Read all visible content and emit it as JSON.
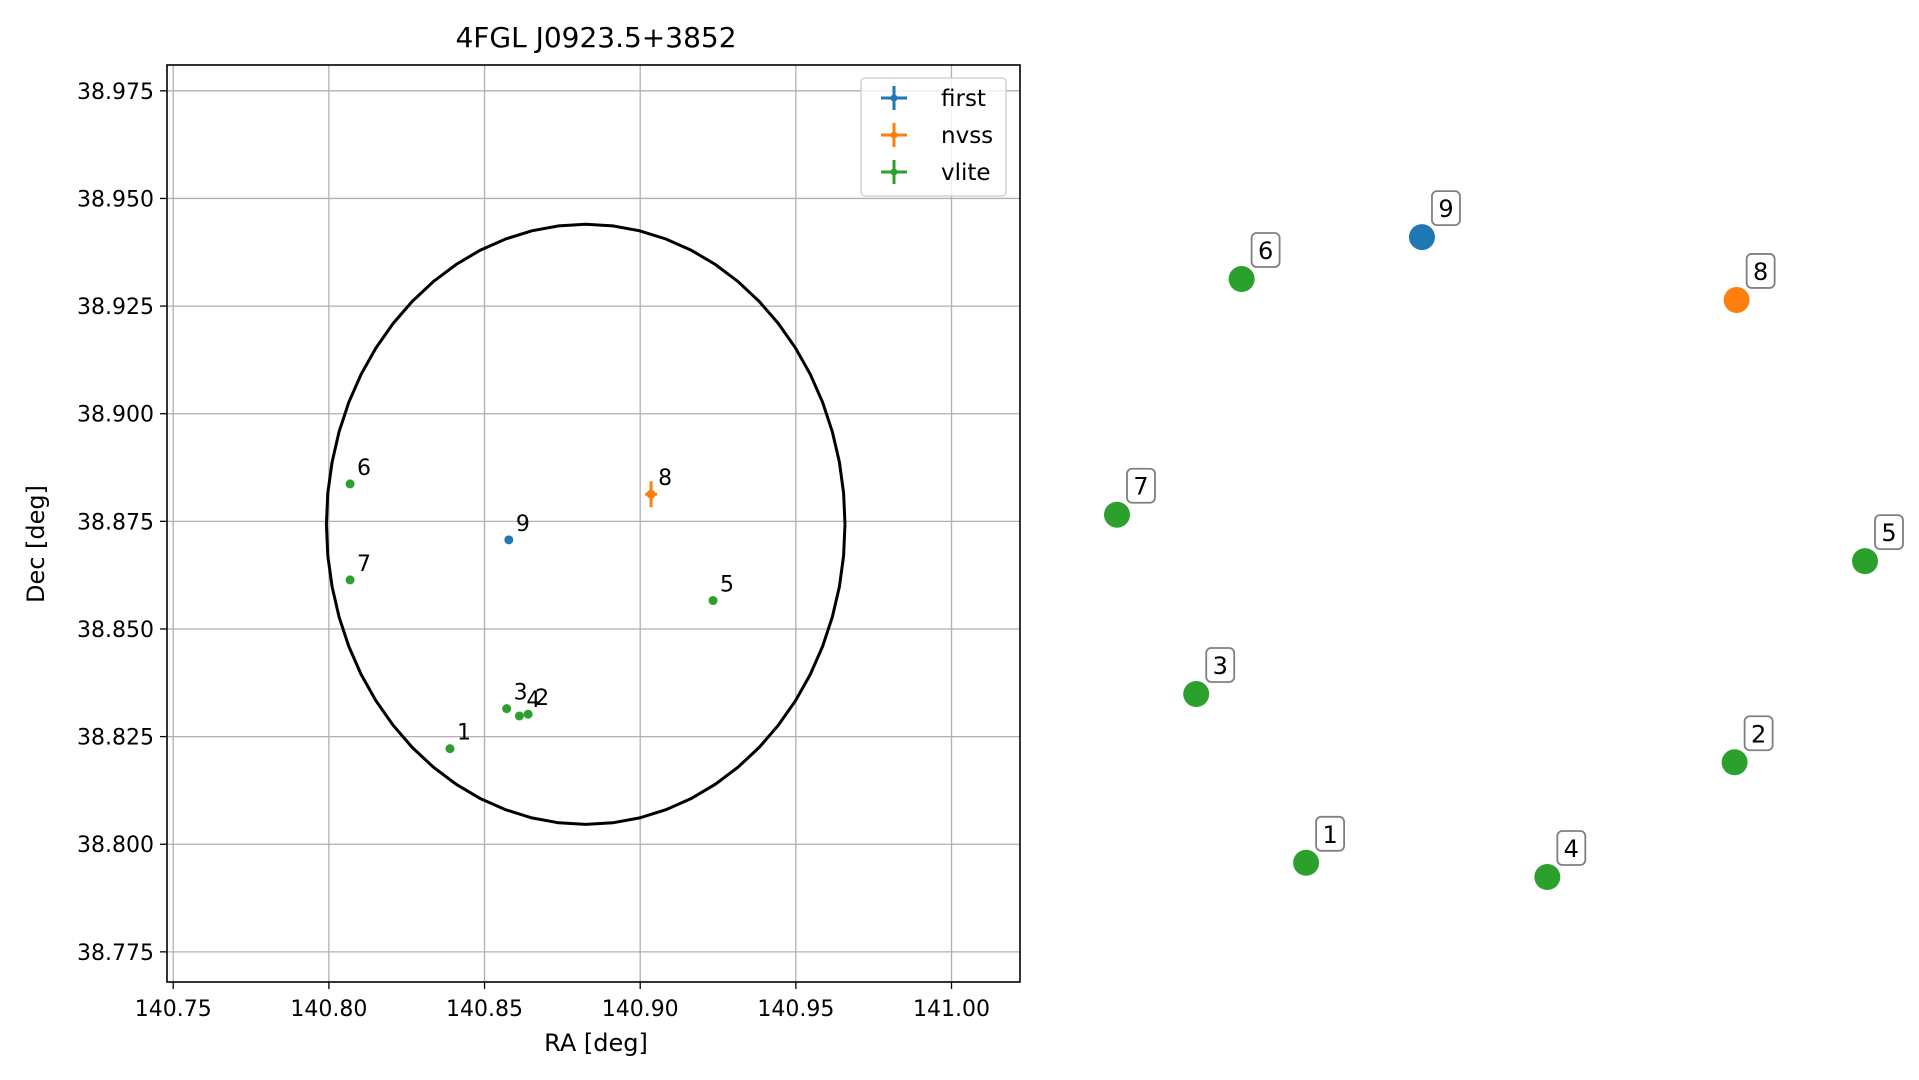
{
  "chart_data": [
    {
      "type": "scatter",
      "title": "4FGL J0923.5+3852",
      "xlabel": "RA [deg]",
      "ylabel": "Dec [deg]",
      "xlim": [
        140.748,
        141.022
      ],
      "ylim": [
        38.768,
        38.981
      ],
      "xticks": [
        140.75,
        140.8,
        140.85,
        140.9,
        140.95,
        141.0
      ],
      "xtick_labels": [
        "140.75",
        "140.80",
        "140.85",
        "140.90",
        "140.95",
        "141.00"
      ],
      "yticks": [
        38.775,
        38.8,
        38.825,
        38.85,
        38.875,
        38.9,
        38.925,
        38.95,
        38.975
      ],
      "ytick_labels": [
        "38.775",
        "38.800",
        "38.825",
        "38.850",
        "38.875",
        "38.900",
        "38.925",
        "38.950",
        "38.975"
      ],
      "grid": true,
      "legend_position": "top-right",
      "colors": {
        "first": "#1f77b4",
        "nvss": "#ff7f0e",
        "vlite": "#2ca02c",
        "ellipse": "#000000",
        "grid": "#b0b0b0"
      },
      "series": [
        {
          "name": "first",
          "points": [
            {
              "label": "9",
              "ra": 140.8578,
              "dec": 38.8707
            }
          ]
        },
        {
          "name": "nvss",
          "points": [
            {
              "label": "8",
              "ra": 140.9035,
              "dec": 38.8813,
              "dec_err": 0.003
            }
          ]
        },
        {
          "name": "vlite",
          "points": [
            {
              "label": "1",
              "ra": 140.8389,
              "dec": 38.8222
            },
            {
              "label": "2",
              "ra": 140.864,
              "dec": 38.8302
            },
            {
              "label": "3",
              "ra": 140.8571,
              "dec": 38.8315
            },
            {
              "label": "4",
              "ra": 140.8612,
              "dec": 38.8298
            },
            {
              "label": "5",
              "ra": 140.9234,
              "dec": 38.8566
            },
            {
              "label": "6",
              "ra": 140.8068,
              "dec": 38.8837
            },
            {
              "label": "7",
              "ra": 140.8068,
              "dec": 38.8614
            }
          ]
        }
      ],
      "ellipse": {
        "center_ra": 140.8825,
        "center_dec": 38.8743,
        "semi_ra": 0.0833,
        "semi_dec": 0.0697
      }
    },
    {
      "type": "scatter",
      "points": [
        {
          "label": "9",
          "series": "first",
          "x": 0.4077,
          "y": 0.8962
        },
        {
          "label": "6",
          "series": "vlite",
          "x": 0.1666,
          "y": 0.8375
        },
        {
          "label": "8",
          "series": "nvss",
          "x": 0.8284,
          "y": 0.8082
        },
        {
          "label": "7",
          "series": "vlite",
          "x": 0.0,
          "y": 0.5074
        },
        {
          "label": "5",
          "series": "vlite",
          "x": 1.0,
          "y": 0.4424
        },
        {
          "label": "3",
          "series": "vlite",
          "x": 0.1059,
          "y": 0.2563
        },
        {
          "label": "2",
          "series": "vlite",
          "x": 0.8257,
          "y": 0.1607
        },
        {
          "label": "1",
          "series": "vlite",
          "x": 0.2528,
          "y": 0.0199
        },
        {
          "label": "4",
          "series": "vlite",
          "x": 0.5753,
          "y": 0.0
        }
      ]
    }
  ]
}
